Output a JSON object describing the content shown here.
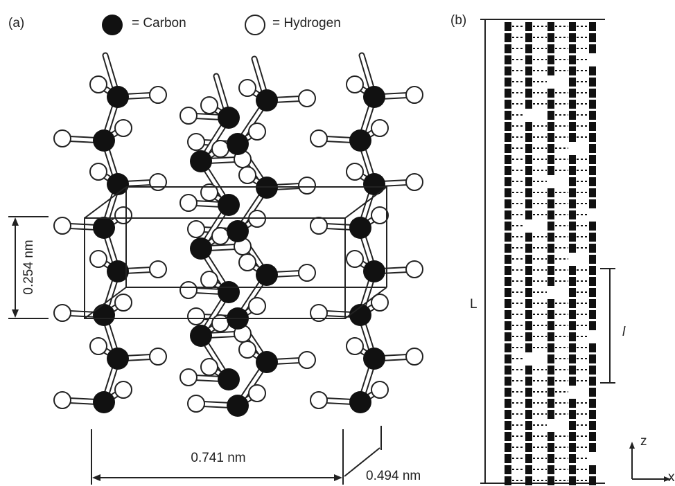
{
  "panel_a": {
    "label": "(a)",
    "legend": [
      {
        "label": "= Carbon"
      },
      {
        "label": "= Hydrogen"
      }
    ],
    "dimensions": [
      "0.254 nm",
      "0.741 nm",
      "0.494 nm"
    ]
  },
  "panel_b": {
    "label": "(b)",
    "length_label": "L",
    "segment_label": "l",
    "axes": [
      "z",
      "x"
    ]
  }
}
